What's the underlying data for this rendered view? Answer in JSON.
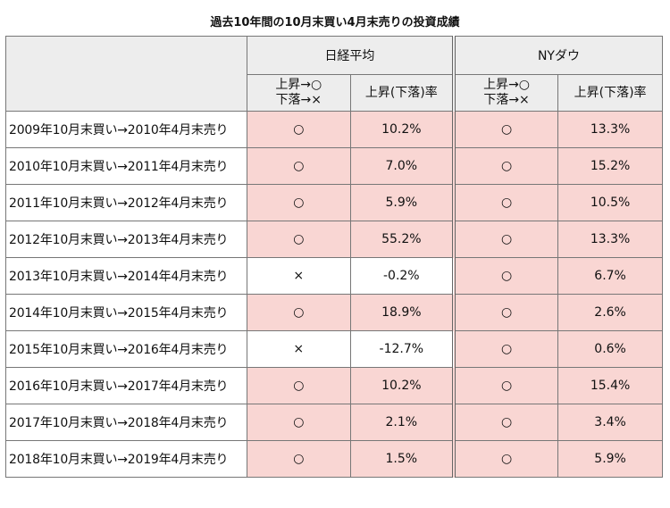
{
  "title": "過去10年間の10月末買い4月末売りの投資成績",
  "groups": {
    "nikkei": "日経平均",
    "ny": "NYダウ"
  },
  "subheaders": {
    "updown_line1": "上昇→○",
    "updown_line2": "下落→×",
    "rate": "上昇(下落)率"
  },
  "rows": [
    {
      "label": "2009年10月末買い→2010年4月末売り",
      "nk_mark": "○",
      "nk_rate": "10.2%",
      "ny_mark": "○",
      "ny_rate": "13.3%"
    },
    {
      "label": "2010年10月末買い→2011年4月末売り",
      "nk_mark": "○",
      "nk_rate": "7.0%",
      "ny_mark": "○",
      "ny_rate": "15.2%"
    },
    {
      "label": "2011年10月末買い→2012年4月末売り",
      "nk_mark": "○",
      "nk_rate": "5.9%",
      "ny_mark": "○",
      "ny_rate": "10.5%"
    },
    {
      "label": "2012年10月末買い→2013年4月末売り",
      "nk_mark": "○",
      "nk_rate": "55.2%",
      "ny_mark": "○",
      "ny_rate": "13.3%"
    },
    {
      "label": "2013年10月末買い→2014年4月末売り",
      "nk_mark": "×",
      "nk_rate": "-0.2%",
      "ny_mark": "○",
      "ny_rate": "6.7%"
    },
    {
      "label": "2014年10月末買い→2015年4月末売り",
      "nk_mark": "○",
      "nk_rate": "18.9%",
      "ny_mark": "○",
      "ny_rate": "2.6%"
    },
    {
      "label": "2015年10月末買い→2016年4月末売り",
      "nk_mark": "×",
      "nk_rate": "-12.7%",
      "ny_mark": "○",
      "ny_rate": "0.6%"
    },
    {
      "label": "2016年10月末買い→2017年4月末売り",
      "nk_mark": "○",
      "nk_rate": "10.2%",
      "ny_mark": "○",
      "ny_rate": "15.4%"
    },
    {
      "label": "2017年10月末買い→2018年4月末売り",
      "nk_mark": "○",
      "nk_rate": "2.1%",
      "ny_mark": "○",
      "ny_rate": "3.4%"
    },
    {
      "label": "2018年10月末買い→2019年4月末売り",
      "nk_mark": "○",
      "nk_rate": "1.5%",
      "ny_mark": "○",
      "ny_rate": "5.9%"
    }
  ],
  "colors": {
    "positive_fill": "#f9d6d3",
    "negative_fill": "#ffffff",
    "header_fill": "#ededed"
  }
}
